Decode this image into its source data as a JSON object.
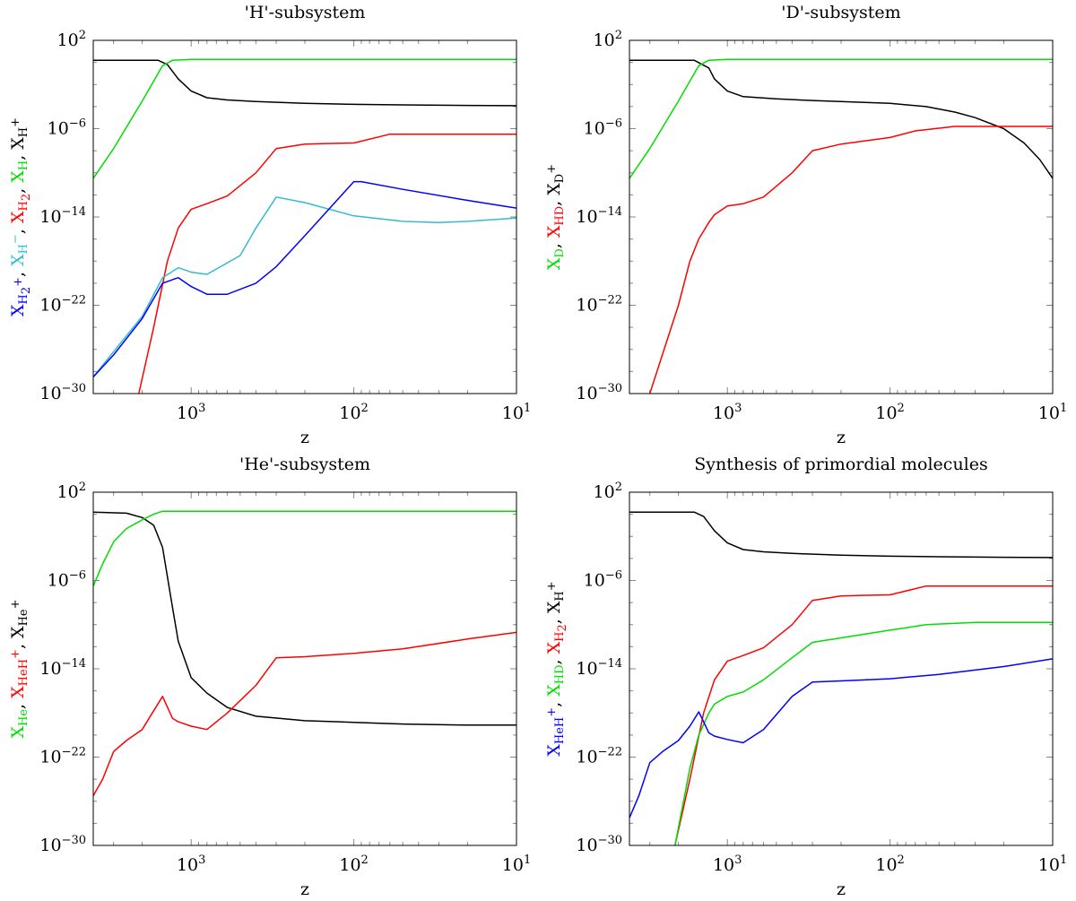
{
  "chart_data": [
    {
      "type": "line",
      "title": "'H'-subsystem",
      "xlabel": "z",
      "xscale": "log",
      "xreversed": true,
      "xlim": [
        4000,
        10
      ],
      "yscale": "log",
      "ylim_exp": [
        -30,
        2
      ],
      "ylabel_parts": [
        {
          "text": "X",
          "sub": "H",
          "subsub": "2",
          "supsup": "+",
          "color": "#0000ff"
        },
        {
          "text": ", ",
          "color": "#000000"
        },
        {
          "text": "X",
          "sub": "H",
          "subsup": "−",
          "color": "#33bbcc"
        },
        {
          "text": ", ",
          "color": "#000000"
        },
        {
          "text": "X",
          "sub": "H",
          "subsub": "2",
          "color": "#ff0000"
        },
        {
          "text": ", ",
          "color": "#000000"
        },
        {
          "text": "X",
          "sub": "H",
          "color": "#00dd00"
        },
        {
          "text": ", ",
          "color": "#000000"
        },
        {
          "text": "X",
          "sub": "H",
          "subsup": "+",
          "color": "#000000"
        }
      ],
      "series": [
        {
          "name": "X_H+",
          "color": "#000000",
          "z": [
            4000,
            1600,
            1400,
            1200,
            1000,
            800,
            600,
            400,
            200,
            100,
            50,
            20,
            10
          ],
          "log10": [
            0.2,
            0.2,
            -0.2,
            -1.5,
            -2.6,
            -3.2,
            -3.4,
            -3.55,
            -3.7,
            -3.8,
            -3.85,
            -3.9,
            -3.92
          ]
        },
        {
          "name": "X_H",
          "color": "#00dd00",
          "z": [
            4000,
            3000,
            2000,
            1500,
            1300,
            1000,
            800,
            500,
            100,
            10
          ],
          "log10": [
            -10.5,
            -7.8,
            -3.5,
            -0.3,
            0.2,
            0.28,
            0.28,
            0.28,
            0.28,
            0.28
          ]
        },
        {
          "name": "X_H2",
          "color": "#ff0000",
          "z": [
            2100,
            1700,
            1400,
            1200,
            1000,
            800,
            600,
            400,
            300,
            200,
            150,
            100,
            60,
            30,
            10
          ],
          "log10": [
            -30,
            -24,
            -18,
            -15,
            -13.3,
            -12.8,
            -12.1,
            -10,
            -7.8,
            -7.4,
            -7.35,
            -7.3,
            -6.5,
            -6.5,
            -6.5
          ]
        },
        {
          "name": "X_H-",
          "color": "#33bbcc",
          "z": [
            4000,
            3000,
            2000,
            1500,
            1200,
            1000,
            800,
            500,
            400,
            300,
            200,
            100,
            50,
            30,
            20,
            10
          ],
          "log10": [
            -28.5,
            -26.2,
            -23,
            -19.5,
            -18.6,
            -19,
            -19.2,
            -17.5,
            -15,
            -12.2,
            -12.7,
            -13.9,
            -14.4,
            -14.5,
            -14.4,
            -14.1
          ]
        },
        {
          "name": "X_H2+",
          "color": "#0000ff",
          "z": [
            4000,
            3000,
            2000,
            1500,
            1200,
            1000,
            800,
            600,
            400,
            300,
            200,
            100,
            90,
            50,
            20,
            10
          ],
          "log10": [
            -28.5,
            -26.5,
            -23.2,
            -20,
            -19.5,
            -20.3,
            -21,
            -21,
            -20,
            -18.5,
            -15.7,
            -10.8,
            -10.8,
            -11.5,
            -12.5,
            -13.2
          ]
        }
      ]
    },
    {
      "type": "line",
      "title": "'D'-subsystem",
      "xlabel": "z",
      "xscale": "log",
      "xreversed": true,
      "xlim": [
        4000,
        10
      ],
      "yscale": "log",
      "ylim_exp": [
        -30,
        2
      ],
      "ylabel_parts": [
        {
          "text": "X",
          "sub": "D",
          "color": "#00dd00"
        },
        {
          "text": ", ",
          "color": "#000000"
        },
        {
          "text": "X",
          "sub": "HD",
          "color": "#ff0000"
        },
        {
          "text": ", ",
          "color": "#000000"
        },
        {
          "text": "X",
          "sub": "D",
          "subsup": "+",
          "color": "#000000"
        }
      ],
      "series": [
        {
          "name": "X_D+",
          "color": "#000000",
          "z": [
            4000,
            1600,
            1300,
            1200,
            1000,
            800,
            500,
            300,
            100,
            60,
            40,
            30,
            20,
            15,
            12,
            10
          ],
          "log10": [
            0.2,
            0.2,
            -0.5,
            -1.5,
            -2.6,
            -3.1,
            -3.3,
            -3.45,
            -3.7,
            -4.0,
            -4.5,
            -5.0,
            -6.0,
            -7.3,
            -8.8,
            -10.5
          ]
        },
        {
          "name": "X_D",
          "color": "#00dd00",
          "z": [
            4000,
            3000,
            2000,
            1500,
            1300,
            1000,
            800,
            500,
            100,
            10
          ],
          "log10": [
            -10.5,
            -7.8,
            -3.5,
            -0.3,
            0.2,
            0.28,
            0.28,
            0.28,
            0.28,
            0.28
          ]
        },
        {
          "name": "X_HD",
          "color": "#ff0000",
          "z": [
            3000,
            2000,
            1700,
            1500,
            1300,
            1200,
            1000,
            800,
            600,
            400,
            300,
            200,
            100,
            70,
            40,
            20,
            10
          ],
          "log10": [
            -30,
            -22,
            -18,
            -16,
            -14.5,
            -13.8,
            -13.0,
            -12.8,
            -12.2,
            -10,
            -8,
            -7.4,
            -6.8,
            -6.2,
            -5.8,
            -5.8,
            -5.8
          ]
        }
      ]
    },
    {
      "type": "line",
      "title": "'He'-subsystem",
      "xlabel": "z",
      "xscale": "log",
      "xreversed": true,
      "xlim": [
        4000,
        10
      ],
      "yscale": "log",
      "ylim_exp": [
        -30,
        2
      ],
      "ylabel_parts": [
        {
          "text": "X",
          "sub": "He",
          "color": "#00dd00"
        },
        {
          "text": ", ",
          "color": "#000000"
        },
        {
          "text": "X",
          "sub": "HeH",
          "subsup": "+",
          "color": "#ff0000"
        },
        {
          "text": ", ",
          "color": "#000000"
        },
        {
          "text": "X",
          "sub": "He",
          "subsup": "+",
          "color": "#000000"
        }
      ],
      "series": [
        {
          "name": "X_He+",
          "color": "#000000",
          "z": [
            4000,
            2500,
            2000,
            1700,
            1500,
            1300,
            1200,
            1000,
            800,
            600,
            400,
            200,
            100,
            50,
            20,
            10
          ],
          "log10": [
            0.2,
            0.1,
            -0.3,
            -1.0,
            -3.0,
            -8.5,
            -11.5,
            -14.8,
            -16.2,
            -17.5,
            -18.3,
            -18.7,
            -18.85,
            -19.0,
            -19.1,
            -19.1
          ]
        },
        {
          "name": "X_He",
          "color": "#00dd00",
          "z": [
            4000,
            3500,
            3000,
            2500,
            2000,
            1700,
            1500,
            1000,
            100,
            10
          ],
          "log10": [
            -6.5,
            -4.5,
            -2.5,
            -1.3,
            -0.5,
            0,
            0.28,
            0.28,
            0.28,
            0.28
          ]
        },
        {
          "name": "X_HeH+",
          "color": "#ff0000",
          "z": [
            4000,
            3500,
            3000,
            2500,
            2000,
            1700,
            1500,
            1300,
            1200,
            1000,
            800,
            600,
            400,
            300,
            200,
            100,
            50,
            20,
            10
          ],
          "log10": [
            -25.5,
            -24,
            -21.5,
            -20.5,
            -19.5,
            -17.8,
            -16.5,
            -18.5,
            -18.8,
            -19.2,
            -19.5,
            -18.0,
            -15.5,
            -13.0,
            -12.9,
            -12.6,
            -12.2,
            -11.3,
            -10.7
          ]
        }
      ]
    },
    {
      "type": "line",
      "title": "Synthesis of primordial molecules",
      "xlabel": "z",
      "xscale": "log",
      "xreversed": true,
      "xlim": [
        4000,
        10
      ],
      "yscale": "log",
      "ylim_exp": [
        -30,
        2
      ],
      "ylabel_parts": [
        {
          "text": "X",
          "sub": "HeH",
          "subsup": "+",
          "color": "#0000ff"
        },
        {
          "text": ", ",
          "color": "#000000"
        },
        {
          "text": "X",
          "sub": "HD",
          "color": "#00dd00"
        },
        {
          "text": ", ",
          "color": "#000000"
        },
        {
          "text": "X",
          "sub": "H",
          "subsub": "2",
          "color": "#ff0000"
        },
        {
          "text": ", ",
          "color": "#000000"
        },
        {
          "text": "X",
          "sub": "H",
          "subsup": "+",
          "color": "#000000"
        }
      ],
      "series": [
        {
          "name": "X_H+",
          "color": "#000000",
          "z": [
            4000,
            1600,
            1400,
            1200,
            1000,
            800,
            600,
            400,
            200,
            100,
            50,
            20,
            10
          ],
          "log10": [
            0.2,
            0.2,
            -0.2,
            -1.5,
            -2.6,
            -3.2,
            -3.4,
            -3.55,
            -3.7,
            -3.8,
            -3.85,
            -3.9,
            -3.92
          ]
        },
        {
          "name": "X_H2",
          "color": "#ff0000",
          "z": [
            2100,
            1700,
            1400,
            1200,
            1000,
            800,
            600,
            400,
            300,
            200,
            150,
            100,
            60,
            30,
            10
          ],
          "log10": [
            -30,
            -24,
            -18,
            -15,
            -13.3,
            -12.8,
            -12.1,
            -10,
            -7.8,
            -7.4,
            -7.35,
            -7.3,
            -6.5,
            -6.5,
            -6.5
          ]
        },
        {
          "name": "X_HD",
          "color": "#00dd00",
          "z": [
            2100,
            1700,
            1500,
            1300,
            1200,
            1000,
            800,
            600,
            400,
            300,
            200,
            100,
            60,
            30,
            10
          ],
          "log10": [
            -30,
            -23,
            -20,
            -18,
            -17.2,
            -16.5,
            -16.1,
            -15,
            -13,
            -11.6,
            -11.2,
            -10.5,
            -10,
            -9.8,
            -9.8
          ]
        },
        {
          "name": "X_HeH+",
          "color": "#0000ff",
          "z": [
            4000,
            3500,
            3000,
            2500,
            2000,
            1700,
            1500,
            1400,
            1300,
            1200,
            1000,
            800,
            600,
            400,
            300,
            200,
            100,
            50,
            20,
            10
          ],
          "log10": [
            -27.5,
            -25.5,
            -22.5,
            -21.5,
            -20.5,
            -19.2,
            -17.9,
            -18.8,
            -19.8,
            -20.1,
            -20.4,
            -20.7,
            -19.5,
            -16.5,
            -15.2,
            -15.1,
            -14.9,
            -14.5,
            -13.8,
            -13.1
          ]
        }
      ]
    }
  ]
}
